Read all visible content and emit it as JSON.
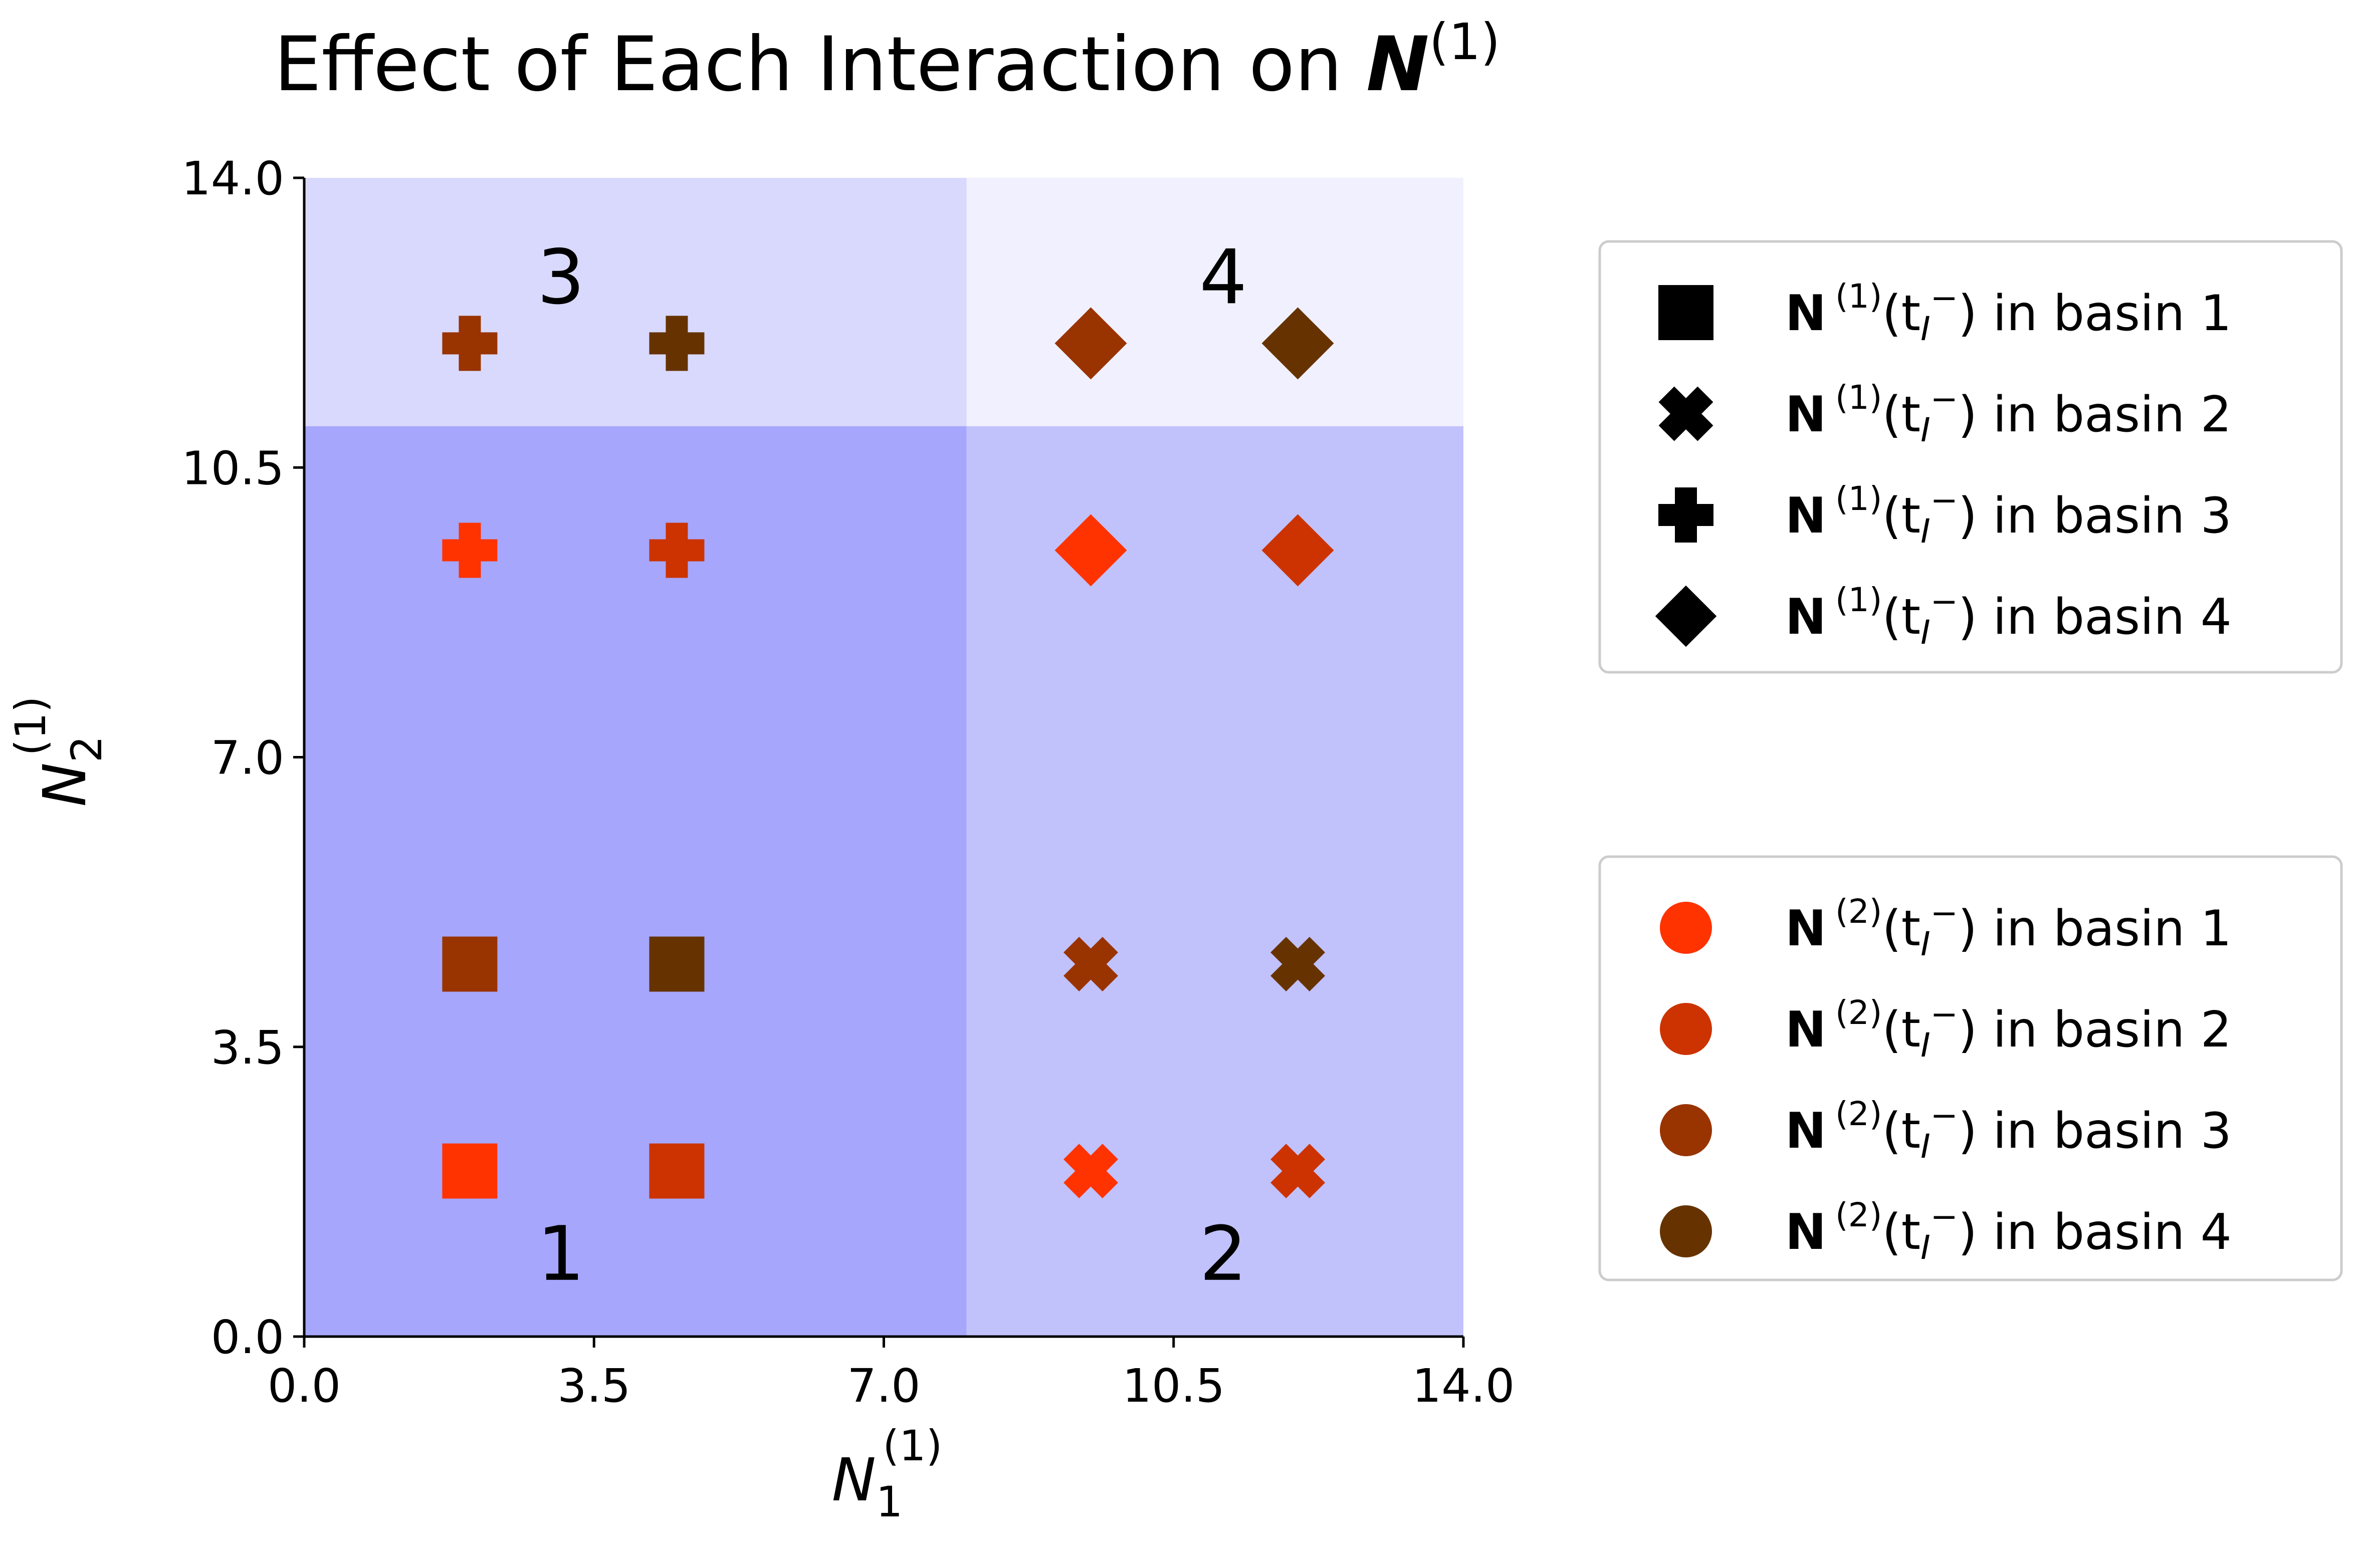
{
  "chart_data": {
    "type": "scatter",
    "title": {
      "text": "Effect of Each Interaction on ",
      "symbol": "N",
      "superscript": "(1)"
    },
    "xlabel": {
      "symbol": "N",
      "subscript": "1",
      "superscript": "(1)"
    },
    "ylabel": {
      "symbol": "N",
      "subscript": "2",
      "superscript": "(1)"
    },
    "xlim": [
      0,
      14
    ],
    "ylim": [
      0,
      14
    ],
    "x_ticks": [
      0,
      3.5,
      7,
      10.5,
      14
    ],
    "y_ticks": [
      0,
      3.5,
      7,
      10.5,
      14
    ],
    "x_tick_labels": [
      "0.0",
      "3.5",
      "7.0",
      "10.5",
      "14.0"
    ],
    "y_tick_labels": [
      "0.0",
      "3.5",
      "7.0",
      "10.5",
      "14.0"
    ],
    "grid": false,
    "basin_regions": [
      {
        "label": "1",
        "x": [
          0,
          8
        ],
        "y": [
          0,
          11
        ],
        "color": "#a6a6fc",
        "label_at": [
          3.1,
          1.0
        ]
      },
      {
        "label": "2",
        "x": [
          8,
          14
        ],
        "y": [
          0,
          11
        ],
        "color": "#c1c1fc",
        "label_at": [
          11.1,
          1.0
        ]
      },
      {
        "label": "3",
        "x": [
          0,
          8
        ],
        "y": [
          11,
          14
        ],
        "color": "#d9d9fd",
        "label_at": [
          3.1,
          12.8
        ]
      },
      {
        "label": "4",
        "x": [
          8,
          14
        ],
        "y": [
          11,
          14
        ],
        "color": "#f0f0fe",
        "label_at": [
          11.1,
          12.8
        ]
      }
    ],
    "marker_shapes": {
      "1": "square",
      "2": "x",
      "3": "plus",
      "4": "diamond"
    },
    "basin_colors": {
      "1": "#ff3300",
      "2": "#cc3300",
      "3": "#993300",
      "4": "#663300"
    },
    "points": [
      {
        "x": 2,
        "y": 2,
        "n1_basin": 1,
        "n2_basin": 1
      },
      {
        "x": 4.5,
        "y": 2,
        "n1_basin": 1,
        "n2_basin": 2
      },
      {
        "x": 2,
        "y": 4.5,
        "n1_basin": 1,
        "n2_basin": 3
      },
      {
        "x": 4.5,
        "y": 4.5,
        "n1_basin": 1,
        "n2_basin": 4
      },
      {
        "x": 9.5,
        "y": 2,
        "n1_basin": 2,
        "n2_basin": 1
      },
      {
        "x": 12,
        "y": 2,
        "n1_basin": 2,
        "n2_basin": 2
      },
      {
        "x": 9.5,
        "y": 4.5,
        "n1_basin": 2,
        "n2_basin": 3
      },
      {
        "x": 12,
        "y": 4.5,
        "n1_basin": 2,
        "n2_basin": 4
      },
      {
        "x": 2,
        "y": 9.5,
        "n1_basin": 3,
        "n2_basin": 1
      },
      {
        "x": 4.5,
        "y": 9.5,
        "n1_basin": 3,
        "n2_basin": 2
      },
      {
        "x": 2,
        "y": 12,
        "n1_basin": 3,
        "n2_basin": 3
      },
      {
        "x": 4.5,
        "y": 12,
        "n1_basin": 3,
        "n2_basin": 4
      },
      {
        "x": 9.5,
        "y": 9.5,
        "n1_basin": 4,
        "n2_basin": 1
      },
      {
        "x": 12,
        "y": 9.5,
        "n1_basin": 4,
        "n2_basin": 2
      },
      {
        "x": 9.5,
        "y": 12,
        "n1_basin": 4,
        "n2_basin": 3
      },
      {
        "x": 12,
        "y": 12,
        "n1_basin": 4,
        "n2_basin": 4
      }
    ],
    "legends": [
      {
        "placement": "right-upper",
        "entries": [
          {
            "marker": "square",
            "color": "#000000",
            "sym": "N",
            "sup": "(1)",
            "arg": "(t",
            "argsub": "I",
            "argsup": "−",
            "close": ")",
            "rest": " in basin 1"
          },
          {
            "marker": "x",
            "color": "#000000",
            "sym": "N",
            "sup": "(1)",
            "arg": "(t",
            "argsub": "I",
            "argsup": "−",
            "close": ")",
            "rest": " in basin 2"
          },
          {
            "marker": "plus",
            "color": "#000000",
            "sym": "N",
            "sup": "(1)",
            "arg": "(t",
            "argsub": "I",
            "argsup": "−",
            "close": ")",
            "rest": " in basin 3"
          },
          {
            "marker": "diamond",
            "color": "#000000",
            "sym": "N",
            "sup": "(1)",
            "arg": "(t",
            "argsub": "I",
            "argsup": "−",
            "close": ")",
            "rest": " in basin 4"
          }
        ]
      },
      {
        "placement": "right-lower",
        "entries": [
          {
            "marker": "circle",
            "color": "#ff3300",
            "sym": "N",
            "sup": "(2)",
            "arg": "(t",
            "argsub": "I",
            "argsup": "−",
            "close": ")",
            "rest": " in basin 1"
          },
          {
            "marker": "circle",
            "color": "#cc3300",
            "sym": "N",
            "sup": "(2)",
            "arg": "(t",
            "argsub": "I",
            "argsup": "−",
            "close": ")",
            "rest": " in basin 2"
          },
          {
            "marker": "circle",
            "color": "#993300",
            "sym": "N",
            "sup": "(2)",
            "arg": "(t",
            "argsub": "I",
            "argsup": "−",
            "close": ")",
            "rest": " in basin 3"
          },
          {
            "marker": "circle",
            "color": "#663300",
            "sym": "N",
            "sup": "(2)",
            "arg": "(t",
            "argsub": "I",
            "argsup": "−",
            "close": ")",
            "rest": " in basin 4"
          }
        ]
      }
    ]
  }
}
